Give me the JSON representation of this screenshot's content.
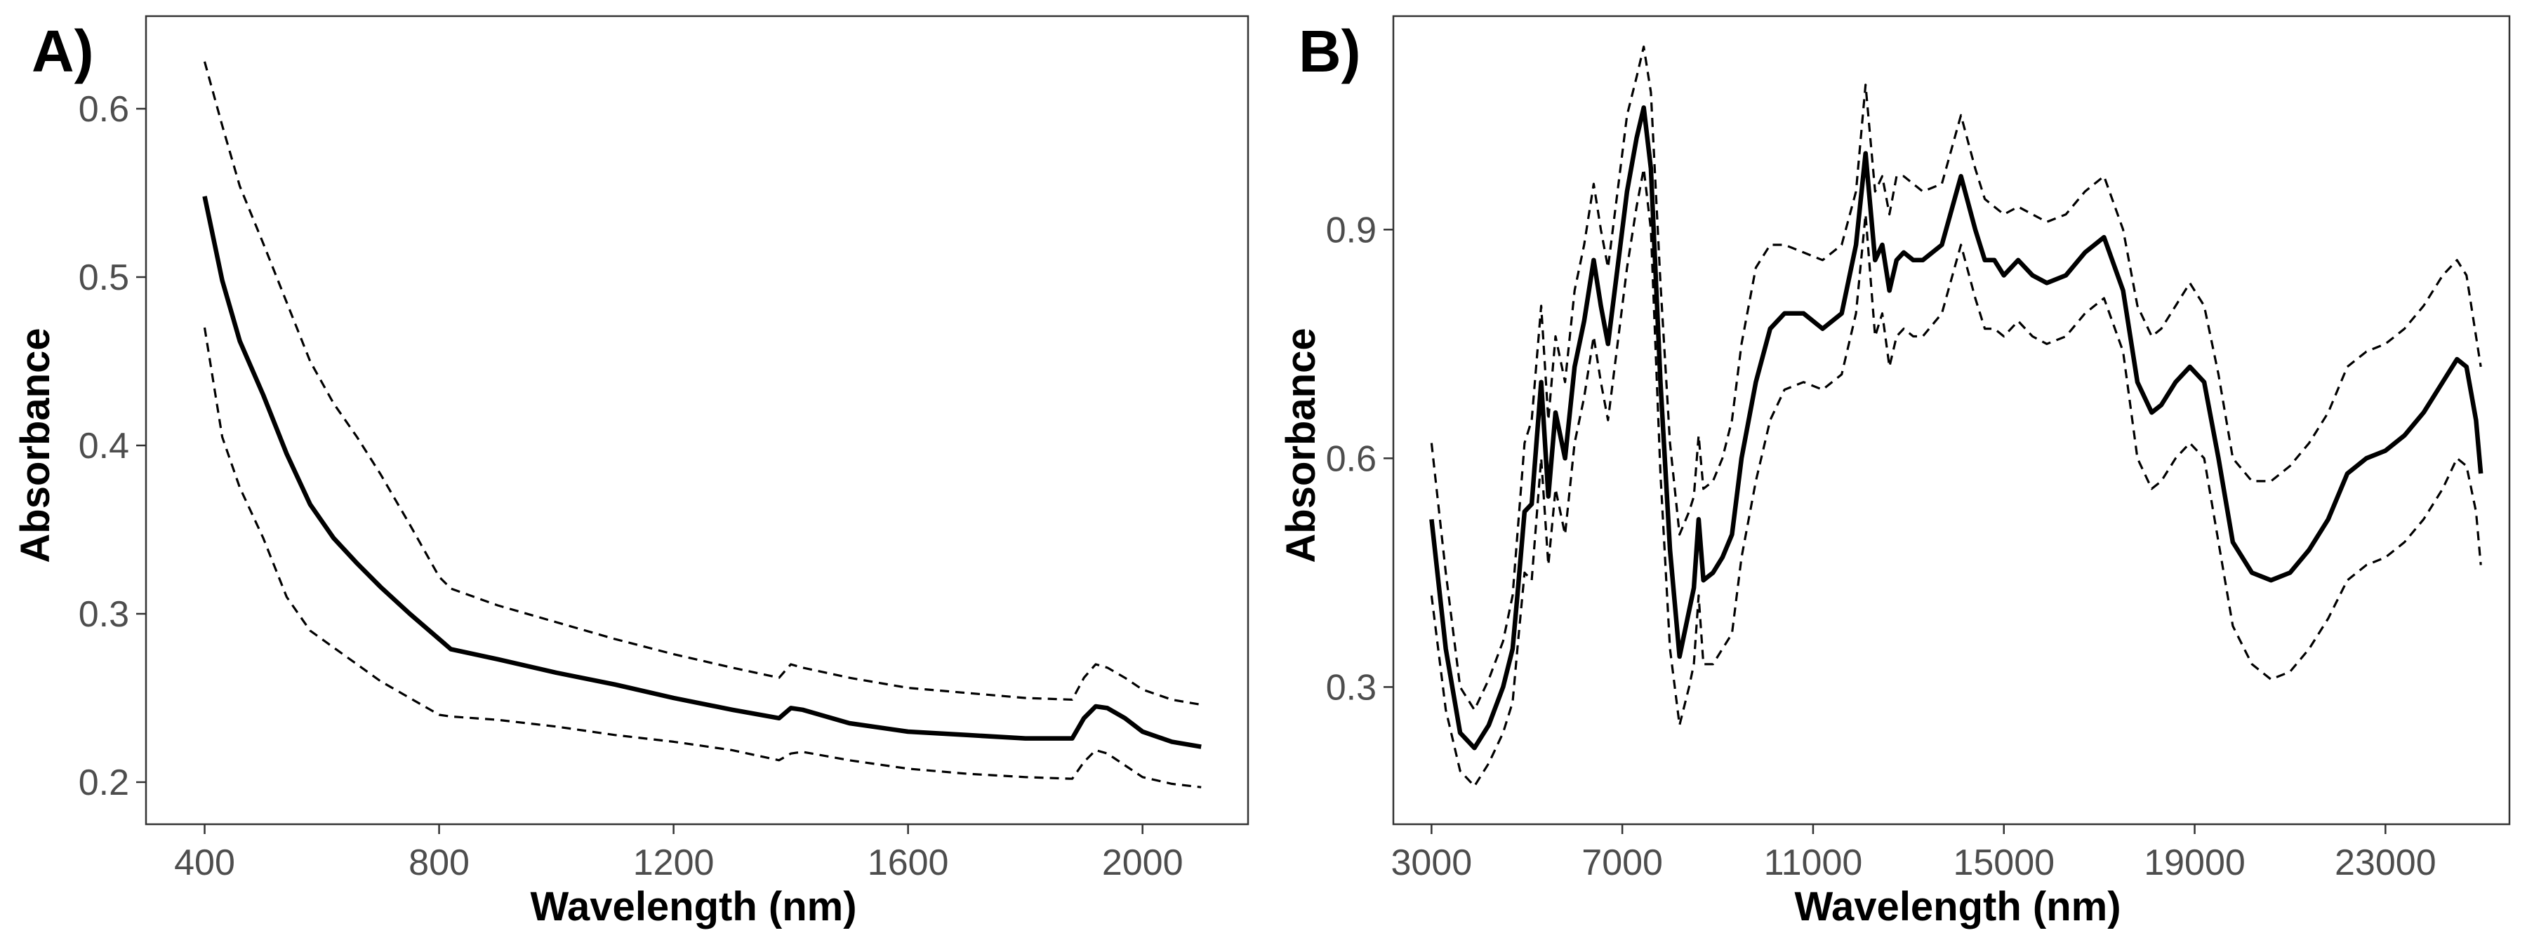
{
  "chart_data": [
    {
      "panel_label": "A)",
      "type": "line",
      "xlabel": "Wavelength (nm)",
      "ylabel": "Absorbance",
      "xlim": [
        300,
        2180
      ],
      "ylim": [
        0.175,
        0.655
      ],
      "xticks": [
        400,
        800,
        1200,
        1600,
        2000
      ],
      "yticks": [
        0.2,
        0.3,
        0.4,
        0.5,
        0.6
      ],
      "ytick_labels": [
        "0.2",
        "0.3",
        "0.4",
        "0.5",
        "0.6"
      ],
      "grid": false,
      "series": [
        {
          "style": "solid",
          "x": [
            400,
            430,
            460,
            500,
            540,
            580,
            620,
            660,
            700,
            750,
            800,
            820,
            900,
            1000,
            1100,
            1200,
            1300,
            1380,
            1400,
            1420,
            1500,
            1600,
            1700,
            1800,
            1880,
            1900,
            1920,
            1940,
            1970,
            2000,
            2050,
            2100
          ],
          "y": [
            0.548,
            0.498,
            0.462,
            0.43,
            0.395,
            0.365,
            0.345,
            0.33,
            0.316,
            0.3,
            0.285,
            0.279,
            0.273,
            0.265,
            0.258,
            0.25,
            0.243,
            0.238,
            0.244,
            0.243,
            0.235,
            0.23,
            0.228,
            0.226,
            0.226,
            0.238,
            0.245,
            0.244,
            0.238,
            0.23,
            0.224,
            0.221
          ]
        },
        {
          "style": "dashed",
          "x": [
            400,
            430,
            460,
            500,
            540,
            580,
            620,
            660,
            700,
            750,
            800,
            820,
            900,
            1000,
            1100,
            1200,
            1300,
            1380,
            1400,
            1420,
            1500,
            1600,
            1700,
            1800,
            1880,
            1900,
            1920,
            1940,
            1970,
            2000,
            2050,
            2100
          ],
          "y": [
            0.628,
            0.59,
            0.554,
            0.52,
            0.485,
            0.45,
            0.425,
            0.405,
            0.383,
            0.353,
            0.322,
            0.315,
            0.305,
            0.295,
            0.285,
            0.276,
            0.268,
            0.262,
            0.27,
            0.268,
            0.262,
            0.256,
            0.253,
            0.25,
            0.249,
            0.262,
            0.27,
            0.268,
            0.262,
            0.255,
            0.249,
            0.246
          ]
        },
        {
          "style": "dashed",
          "x": [
            400,
            430,
            460,
            500,
            540,
            580,
            620,
            660,
            700,
            750,
            800,
            820,
            900,
            1000,
            1100,
            1200,
            1300,
            1380,
            1400,
            1420,
            1500,
            1600,
            1700,
            1800,
            1880,
            1900,
            1920,
            1940,
            1970,
            2000,
            2050,
            2100
          ],
          "y": [
            0.47,
            0.405,
            0.375,
            0.345,
            0.31,
            0.29,
            0.28,
            0.27,
            0.26,
            0.25,
            0.24,
            0.239,
            0.237,
            0.233,
            0.228,
            0.224,
            0.219,
            0.213,
            0.217,
            0.218,
            0.213,
            0.208,
            0.205,
            0.203,
            0.202,
            0.212,
            0.219,
            0.217,
            0.21,
            0.203,
            0.199,
            0.197
          ]
        }
      ]
    },
    {
      "panel_label": "B)",
      "type": "line",
      "xlabel": "Wavelength (nm)",
      "ylabel": "Absorbance",
      "xlim": [
        2200,
        25600
      ],
      "ylim": [
        0.12,
        1.18
      ],
      "xticks": [
        3000,
        7000,
        11000,
        15000,
        19000,
        23000
      ],
      "yticks": [
        0.3,
        0.6,
        0.9
      ],
      "ytick_labels": [
        "0.3",
        "0.6",
        "0.9"
      ],
      "grid": false,
      "series": [
        {
          "style": "solid",
          "x": [
            3000,
            3300,
            3600,
            3900,
            4200,
            4500,
            4700,
            4800,
            4950,
            5100,
            5300,
            5450,
            5600,
            5800,
            6000,
            6200,
            6400,
            6550,
            6700,
            6900,
            7100,
            7300,
            7450,
            7600,
            7800,
            8000,
            8200,
            8400,
            8500,
            8600,
            8700,
            8900,
            9100,
            9300,
            9500,
            9800,
            10100,
            10400,
            10800,
            11200,
            11600,
            11900,
            12100,
            12300,
            12450,
            12600,
            12750,
            12900,
            13100,
            13300,
            13700,
            14100,
            14400,
            14600,
            14800,
            15000,
            15300,
            15600,
            15900,
            16300,
            16700,
            17100,
            17500,
            17800,
            18100,
            18300,
            18600,
            18900,
            19200,
            19500,
            19800,
            20200,
            20600,
            21000,
            21400,
            21800,
            22200,
            22600,
            23000,
            23400,
            23800,
            24200,
            24500,
            24700,
            24900,
            25000
          ],
          "y": [
            0.52,
            0.35,
            0.24,
            0.22,
            0.25,
            0.3,
            0.35,
            0.42,
            0.53,
            0.54,
            0.7,
            0.55,
            0.66,
            0.6,
            0.72,
            0.78,
            0.86,
            0.8,
            0.75,
            0.85,
            0.95,
            1.02,
            1.06,
            0.98,
            0.7,
            0.48,
            0.34,
            0.4,
            0.43,
            0.52,
            0.44,
            0.45,
            0.47,
            0.5,
            0.6,
            0.7,
            0.77,
            0.79,
            0.79,
            0.77,
            0.79,
            0.88,
            1.0,
            0.86,
            0.88,
            0.82,
            0.86,
            0.87,
            0.86,
            0.86,
            0.88,
            0.97,
            0.9,
            0.86,
            0.86,
            0.84,
            0.86,
            0.84,
            0.83,
            0.84,
            0.87,
            0.89,
            0.82,
            0.7,
            0.66,
            0.67,
            0.7,
            0.72,
            0.7,
            0.6,
            0.49,
            0.45,
            0.44,
            0.45,
            0.48,
            0.52,
            0.58,
            0.6,
            0.61,
            0.63,
            0.66,
            0.7,
            0.73,
            0.72,
            0.65,
            0.58
          ]
        },
        {
          "style": "dashed",
          "x": [
            3000,
            3300,
            3600,
            3900,
            4200,
            4500,
            4700,
            4800,
            4950,
            5100,
            5300,
            5450,
            5600,
            5800,
            6000,
            6200,
            6400,
            6550,
            6700,
            6900,
            7100,
            7300,
            7450,
            7600,
            7800,
            8000,
            8200,
            8400,
            8500,
            8600,
            8700,
            8900,
            9100,
            9300,
            9500,
            9800,
            10100,
            10400,
            10800,
            11200,
            11600,
            11900,
            12100,
            12300,
            12450,
            12600,
            12750,
            12900,
            13100,
            13300,
            13700,
            14100,
            14400,
            14600,
            14800,
            15000,
            15300,
            15600,
            15900,
            16300,
            16700,
            17100,
            17500,
            17800,
            18100,
            18300,
            18600,
            18900,
            19200,
            19500,
            19800,
            20200,
            20600,
            21000,
            21400,
            21800,
            22200,
            22600,
            23000,
            23400,
            23800,
            24200,
            24500,
            24700,
            24900,
            25000
          ],
          "y": [
            0.62,
            0.45,
            0.3,
            0.27,
            0.31,
            0.36,
            0.42,
            0.5,
            0.62,
            0.65,
            0.8,
            0.65,
            0.76,
            0.7,
            0.82,
            0.88,
            0.96,
            0.9,
            0.85,
            0.95,
            1.05,
            1.1,
            1.14,
            1.08,
            0.83,
            0.62,
            0.5,
            0.53,
            0.55,
            0.63,
            0.56,
            0.57,
            0.6,
            0.65,
            0.75,
            0.85,
            0.88,
            0.88,
            0.87,
            0.86,
            0.88,
            0.95,
            1.09,
            0.95,
            0.97,
            0.92,
            0.97,
            0.97,
            0.96,
            0.95,
            0.96,
            1.05,
            0.98,
            0.94,
            0.93,
            0.92,
            0.93,
            0.92,
            0.91,
            0.92,
            0.95,
            0.97,
            0.9,
            0.8,
            0.76,
            0.77,
            0.8,
            0.83,
            0.8,
            0.71,
            0.6,
            0.57,
            0.57,
            0.59,
            0.62,
            0.66,
            0.72,
            0.74,
            0.75,
            0.77,
            0.8,
            0.84,
            0.86,
            0.84,
            0.76,
            0.72
          ]
        },
        {
          "style": "dashed",
          "x": [
            3000,
            3300,
            3600,
            3900,
            4200,
            4500,
            4700,
            4800,
            4950,
            5100,
            5300,
            5450,
            5600,
            5800,
            6000,
            6200,
            6400,
            6550,
            6700,
            6900,
            7100,
            7300,
            7450,
            7600,
            7800,
            8000,
            8200,
            8400,
            8500,
            8600,
            8700,
            8900,
            9100,
            9300,
            9500,
            9800,
            10100,
            10400,
            10800,
            11200,
            11600,
            11900,
            12100,
            12300,
            12450,
            12600,
            12750,
            12900,
            13100,
            13300,
            13700,
            14100,
            14400,
            14600,
            14800,
            15000,
            15300,
            15600,
            15900,
            16300,
            16700,
            17100,
            17500,
            17800,
            18100,
            18300,
            18600,
            18900,
            19200,
            19500,
            19800,
            20200,
            20600,
            21000,
            21400,
            21800,
            22200,
            22600,
            23000,
            23400,
            23800,
            24200,
            24500,
            24700,
            24900,
            25000
          ],
          "y": [
            0.42,
            0.27,
            0.19,
            0.17,
            0.2,
            0.24,
            0.28,
            0.35,
            0.45,
            0.44,
            0.6,
            0.46,
            0.56,
            0.5,
            0.62,
            0.68,
            0.76,
            0.7,
            0.65,
            0.75,
            0.85,
            0.93,
            0.98,
            0.9,
            0.58,
            0.35,
            0.25,
            0.3,
            0.33,
            0.42,
            0.33,
            0.33,
            0.35,
            0.37,
            0.47,
            0.57,
            0.65,
            0.69,
            0.7,
            0.69,
            0.71,
            0.79,
            0.92,
            0.76,
            0.79,
            0.72,
            0.76,
            0.77,
            0.76,
            0.76,
            0.79,
            0.88,
            0.81,
            0.77,
            0.77,
            0.76,
            0.78,
            0.76,
            0.75,
            0.76,
            0.79,
            0.81,
            0.74,
            0.6,
            0.56,
            0.57,
            0.6,
            0.62,
            0.6,
            0.49,
            0.38,
            0.33,
            0.31,
            0.32,
            0.35,
            0.39,
            0.44,
            0.46,
            0.47,
            0.49,
            0.52,
            0.56,
            0.6,
            0.59,
            0.53,
            0.46
          ]
        }
      ]
    }
  ]
}
